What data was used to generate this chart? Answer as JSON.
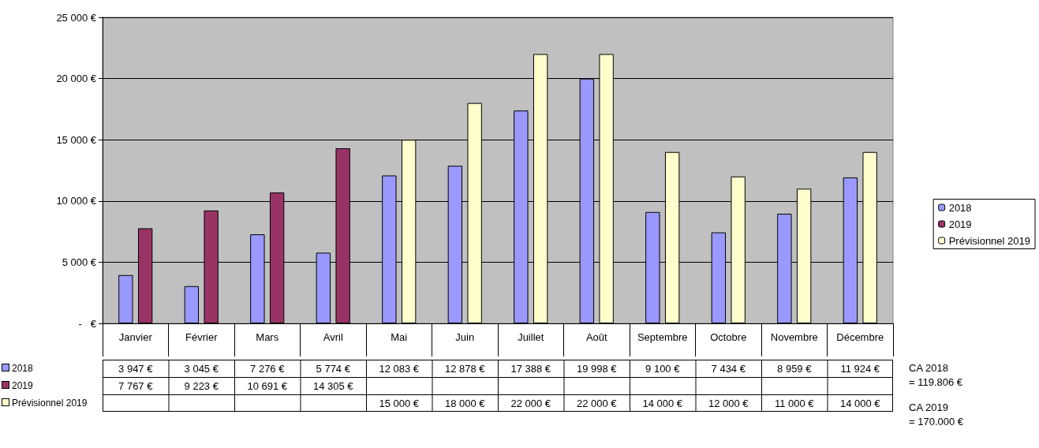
{
  "chart_data": {
    "type": "bar",
    "categories": [
      "Janvier",
      "Février",
      "Mars",
      "Avril",
      "Mai",
      "Juin",
      "Juillet",
      "Août",
      "Septembre",
      "Octobre",
      "Novembre",
      "Décembre"
    ],
    "series": [
      {
        "name": "2018",
        "color": "#9999ff",
        "values": [
          3947,
          3045,
          7276,
          5774,
          12083,
          12878,
          17388,
          19998,
          9100,
          7434,
          8959,
          11924
        ],
        "value_labels": [
          "3 947 €",
          "3 045 €",
          "7 276 €",
          "5 774 €",
          "12 083 €",
          "12 878 €",
          "17 388 €",
          "19 998 €",
          "9 100 €",
          "7 434 €",
          "8 959 €",
          "11 924 €"
        ]
      },
      {
        "name": "2019",
        "color": "#993366",
        "values": [
          7767,
          9223,
          10691,
          14305,
          null,
          null,
          null,
          null,
          null,
          null,
          null,
          null
        ],
        "value_labels": [
          "7 767 €",
          "9 223 €",
          "10 691 €",
          "14 305 €",
          null,
          null,
          null,
          null,
          null,
          null,
          null,
          null
        ]
      },
      {
        "name": "Prévisionnel 2019",
        "color": "#ffffcc",
        "values": [
          null,
          null,
          null,
          null,
          15000,
          18000,
          22000,
          22000,
          14000,
          12000,
          11000,
          14000
        ],
        "value_labels": [
          null,
          null,
          null,
          null,
          "15 000 €",
          "18 000 €",
          "22 000 €",
          "22 000 €",
          "14 000 €",
          "12 000 €",
          "11 000 €",
          "14 000 €"
        ]
      }
    ],
    "ylim": [
      0,
      25000
    ],
    "yticks": [
      {
        "value": 0,
        "label": "-   €"
      },
      {
        "value": 5000,
        "label": "5 000 €"
      },
      {
        "value": 10000,
        "label": "10 000 €"
      },
      {
        "value": 15000,
        "label": "15 000 €"
      },
      {
        "value": 20000,
        "label": "20 000 €"
      },
      {
        "value": 25000,
        "label": "25 000 €"
      }
    ],
    "grid": "y",
    "legend": "right",
    "annotations": [
      "CA 2018\n= 119.806 €",
      "CA 2019\n= 170.000 €"
    ]
  }
}
